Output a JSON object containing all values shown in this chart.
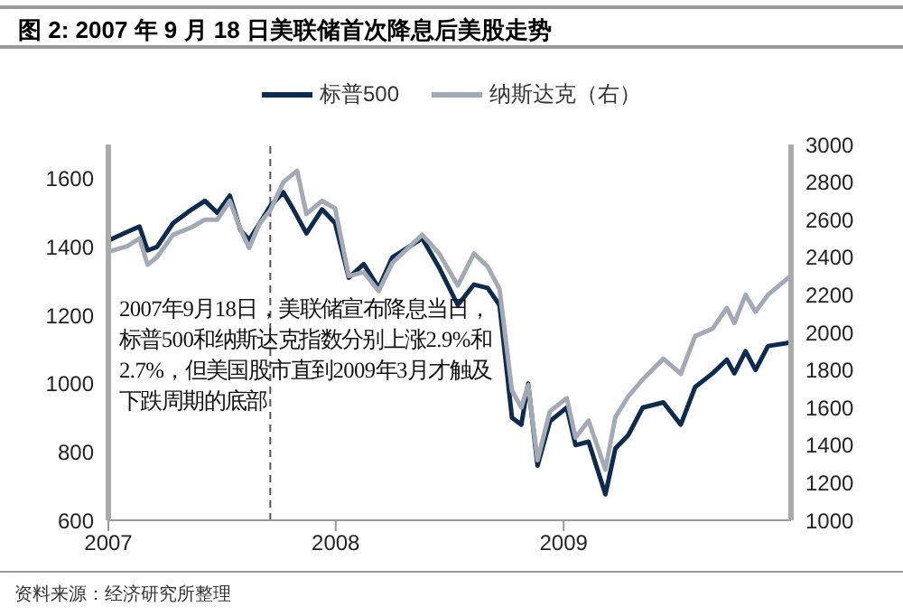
{
  "chart_data": {
    "type": "line",
    "title": "图 2: 2007 年 9 月 18 日美联储首次降息后美股走势",
    "series": [
      {
        "name": "标普500",
        "color": "#0d2a4f",
        "axis": "y",
        "x": [
          "2007-01-02",
          "2007-02-01",
          "2007-02-20",
          "2007-03-05",
          "2007-03-20",
          "2007-04-15",
          "2007-05-15",
          "2007-06-05",
          "2007-06-25",
          "2007-07-15",
          "2007-08-01",
          "2007-08-15",
          "2007-09-01",
          "2007-09-18",
          "2007-10-09",
          "2007-10-25",
          "2007-11-15",
          "2007-12-10",
          "2007-12-31",
          "2008-01-22",
          "2008-02-15",
          "2008-03-10",
          "2008-04-01",
          "2008-05-19",
          "2008-06-15",
          "2008-07-15",
          "2008-08-10",
          "2008-09-01",
          "2008-09-20",
          "2008-10-10",
          "2008-10-25",
          "2008-11-05",
          "2008-11-20",
          "2008-12-10",
          "2009-01-06",
          "2009-01-20",
          "2009-02-10",
          "2009-03-09",
          "2009-03-25",
          "2009-04-15",
          "2009-05-08",
          "2009-06-10",
          "2009-07-08",
          "2009-07-31",
          "2009-08-28",
          "2009-09-20",
          "2009-10-02",
          "2009-10-20",
          "2009-11-05",
          "2009-11-25",
          "2009-12-31"
        ],
        "values": [
          1420,
          1445,
          1460,
          1390,
          1400,
          1470,
          1510,
          1535,
          1500,
          1550,
          1450,
          1420,
          1470,
          1520,
          1560,
          1510,
          1440,
          1510,
          1470,
          1310,
          1350,
          1280,
          1370,
          1425,
          1340,
          1230,
          1290,
          1280,
          1230,
          900,
          880,
          1000,
          760,
          890,
          930,
          820,
          830,
          676,
          810,
          850,
          930,
          945,
          880,
          990,
          1030,
          1070,
          1030,
          1095,
          1040,
          1110,
          1120
        ]
      },
      {
        "name": "纳斯达克（右）",
        "color": "#a3aab6",
        "axis": "y2",
        "x": [
          "2007-01-02",
          "2007-02-01",
          "2007-02-20",
          "2007-03-05",
          "2007-03-20",
          "2007-04-15",
          "2007-05-15",
          "2007-06-05",
          "2007-06-25",
          "2007-07-15",
          "2007-08-01",
          "2007-08-15",
          "2007-09-01",
          "2007-09-18",
          "2007-10-09",
          "2007-10-31",
          "2007-11-15",
          "2007-12-10",
          "2007-12-31",
          "2008-01-22",
          "2008-02-15",
          "2008-03-10",
          "2008-04-01",
          "2008-05-19",
          "2008-06-15",
          "2008-07-15",
          "2008-08-10",
          "2008-09-01",
          "2008-09-20",
          "2008-10-10",
          "2008-10-25",
          "2008-11-05",
          "2008-11-20",
          "2008-12-10",
          "2009-01-06",
          "2009-01-20",
          "2009-02-10",
          "2009-03-09",
          "2009-03-25",
          "2009-04-15",
          "2009-05-08",
          "2009-06-10",
          "2009-07-08",
          "2009-07-31",
          "2009-08-28",
          "2009-09-20",
          "2009-10-02",
          "2009-10-20",
          "2009-11-05",
          "2009-11-25",
          "2009-12-31"
        ],
        "values": [
          2430,
          2460,
          2500,
          2360,
          2400,
          2520,
          2560,
          2600,
          2600,
          2700,
          2550,
          2450,
          2580,
          2650,
          2800,
          2860,
          2630,
          2700,
          2660,
          2300,
          2320,
          2220,
          2370,
          2520,
          2420,
          2250,
          2420,
          2350,
          2230,
          1690,
          1600,
          1720,
          1320,
          1580,
          1650,
          1440,
          1530,
          1270,
          1550,
          1660,
          1750,
          1860,
          1780,
          1980,
          2020,
          2130,
          2050,
          2200,
          2110,
          2200,
          2300
        ]
      }
    ],
    "xlim": [
      "2007-01",
      "2010-01"
    ],
    "xticks": [
      "2007",
      "2008",
      "2009"
    ],
    "ylim": [
      600,
      1700
    ],
    "yticks": [
      600,
      800,
      1000,
      1200,
      1400,
      1600
    ],
    "y2lim": [
      1000,
      3000
    ],
    "y2ticks": [
      1000,
      1200,
      1400,
      1600,
      1800,
      2000,
      2200,
      2400,
      2600,
      2800,
      3000
    ],
    "ref_lines": [
      {
        "axis": "x",
        "value": "2007-09-18",
        "color": "#555555",
        "line_style": "dashed"
      }
    ],
    "annotations": [
      "2007年9月18日，美联储宣布降息当日，标普500和纳斯达克指数分别上涨2.9%和2.7%，但美国股市直到2009年3月才触及下跌周期的底部",
      "资料来源：经济研究所整理"
    ],
    "legend": "top",
    "line_style": "solid",
    "marker": "none"
  }
}
